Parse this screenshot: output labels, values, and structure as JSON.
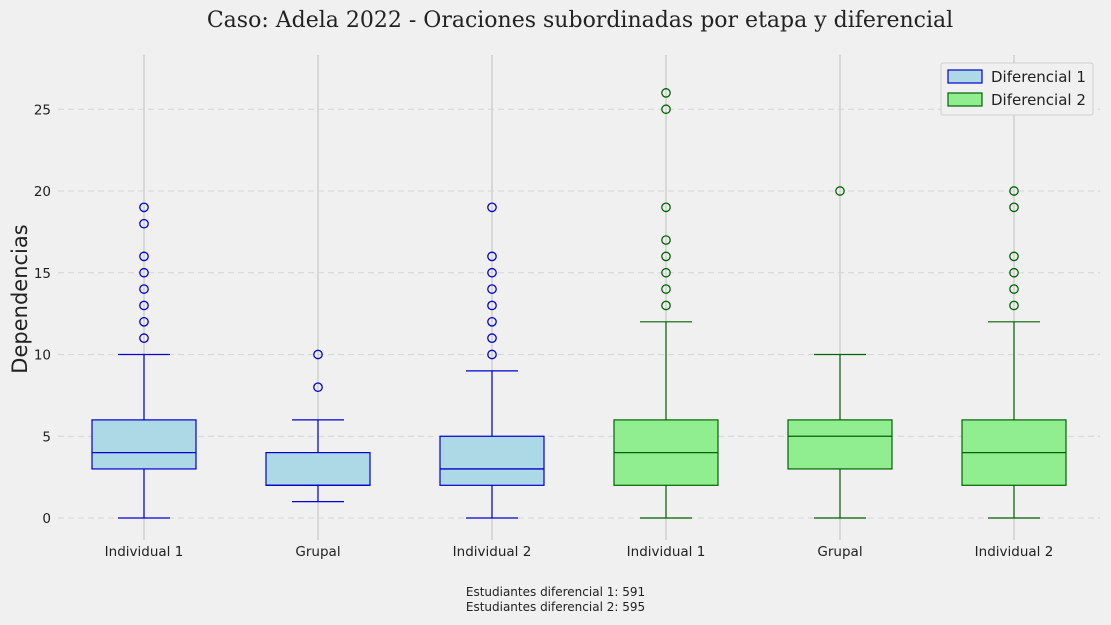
{
  "chart_data": {
    "type": "box",
    "title": "Caso: Adela 2022 - Oraciones subordinadas por etapa y diferencial",
    "xlabel": "",
    "ylabel": "Dependencias",
    "ylim": [
      -1.5,
      28.5
    ],
    "yticks": [
      0,
      5,
      10,
      15,
      20,
      25
    ],
    "grid": true,
    "legend_position": "top-right",
    "categories": [
      "Individual 1",
      "Grupal",
      "Individual 2",
      "Individual 1",
      "Grupal",
      "Individual 2"
    ],
    "series": [
      {
        "name": "Diferencial 1",
        "fill": "#add8e6",
        "stroke": "#0000cd",
        "boxes": [
          {
            "category": "Individual 1",
            "whisker_low": 0,
            "q1": 3,
            "median": 4,
            "q3": 6,
            "whisker_high": 10,
            "outliers": [
              11,
              12,
              13,
              14,
              15,
              16,
              18,
              19
            ]
          },
          {
            "category": "Grupal",
            "whisker_low": 1,
            "q1": 2,
            "median": 2,
            "q3": 4,
            "whisker_high": 6,
            "outliers": [
              8,
              10
            ]
          },
          {
            "category": "Individual 2",
            "whisker_low": 0,
            "q1": 2,
            "median": 3,
            "q3": 5,
            "whisker_high": 9,
            "outliers": [
              10,
              11,
              12,
              13,
              14,
              15,
              16,
              19
            ]
          }
        ]
      },
      {
        "name": "Diferencial 2",
        "fill": "#90ee90",
        "stroke": "#006400",
        "boxes": [
          {
            "category": "Individual 1",
            "whisker_low": 0,
            "q1": 2,
            "median": 4,
            "q3": 6,
            "whisker_high": 12,
            "outliers": [
              13,
              14,
              15,
              16,
              17,
              19,
              25,
              26
            ]
          },
          {
            "category": "Grupal",
            "whisker_low": 0,
            "q1": 3,
            "median": 5,
            "q3": 6,
            "whisker_high": 10,
            "outliers": [
              20
            ]
          },
          {
            "category": "Individual 2",
            "whisker_low": 0,
            "q1": 2,
            "median": 4,
            "q3": 6,
            "whisker_high": 12,
            "outliers": [
              13,
              14,
              15,
              16,
              19,
              20
            ]
          }
        ]
      }
    ]
  },
  "footnote": {
    "line1": "Estudiantes diferencial 1: 591",
    "line2": "Estudiantes diferencial 2: 595"
  }
}
